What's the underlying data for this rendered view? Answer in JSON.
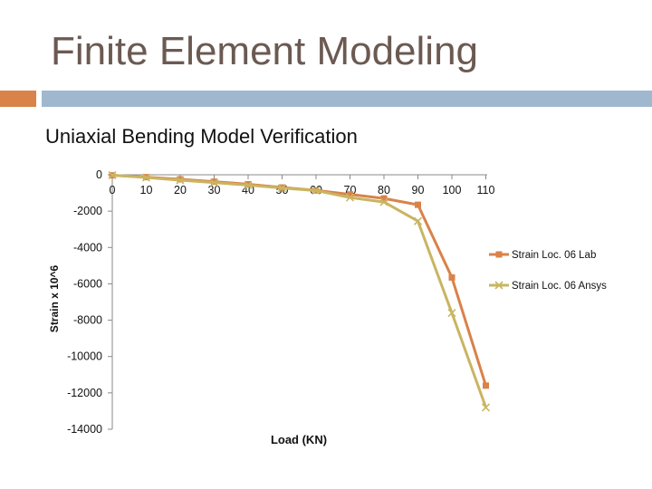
{
  "slide": {
    "title": "Finite Element Modeling",
    "subtitle": "Uniaxial Bending Model Verification",
    "accent_color": "#d9824a",
    "bar_color": "#9fb8d0"
  },
  "chart_data": {
    "type": "line",
    "title": "",
    "xlabel": "Load (KN)",
    "ylabel": "Strain x 10^6",
    "x": [
      0,
      10,
      20,
      30,
      40,
      50,
      60,
      70,
      80,
      90,
      100,
      110
    ],
    "x_ticks": [
      0,
      10,
      20,
      30,
      40,
      50,
      60,
      70,
      80,
      90,
      100,
      110
    ],
    "y_ticks": [
      0,
      -2000,
      -4000,
      -6000,
      -8000,
      -10000,
      -12000,
      -14000
    ],
    "xlim": [
      0,
      110
    ],
    "ylim": [
      -14000,
      0
    ],
    "grid": false,
    "legend_position": "right",
    "series": [
      {
        "name": "Strain Loc. 06 Lab",
        "marker": "square",
        "color": "#d9824a",
        "x": [
          0,
          10,
          20,
          30,
          40,
          50,
          60,
          70,
          80,
          90,
          100,
          110
        ],
        "values": [
          -30,
          -130,
          -250,
          -380,
          -520,
          -700,
          -860,
          -1080,
          -1300,
          -1650,
          -5650,
          -11600
        ]
      },
      {
        "name": "Strain Loc. 06 Ansys",
        "marker": "x",
        "color": "#c9b561",
        "x": [
          0,
          10,
          20,
          30,
          40,
          50,
          60,
          70,
          80,
          90,
          100,
          110
        ],
        "values": [
          -20,
          -150,
          -300,
          -430,
          -570,
          -730,
          -870,
          -1250,
          -1500,
          -2550,
          -7600,
          -12800
        ]
      }
    ]
  }
}
